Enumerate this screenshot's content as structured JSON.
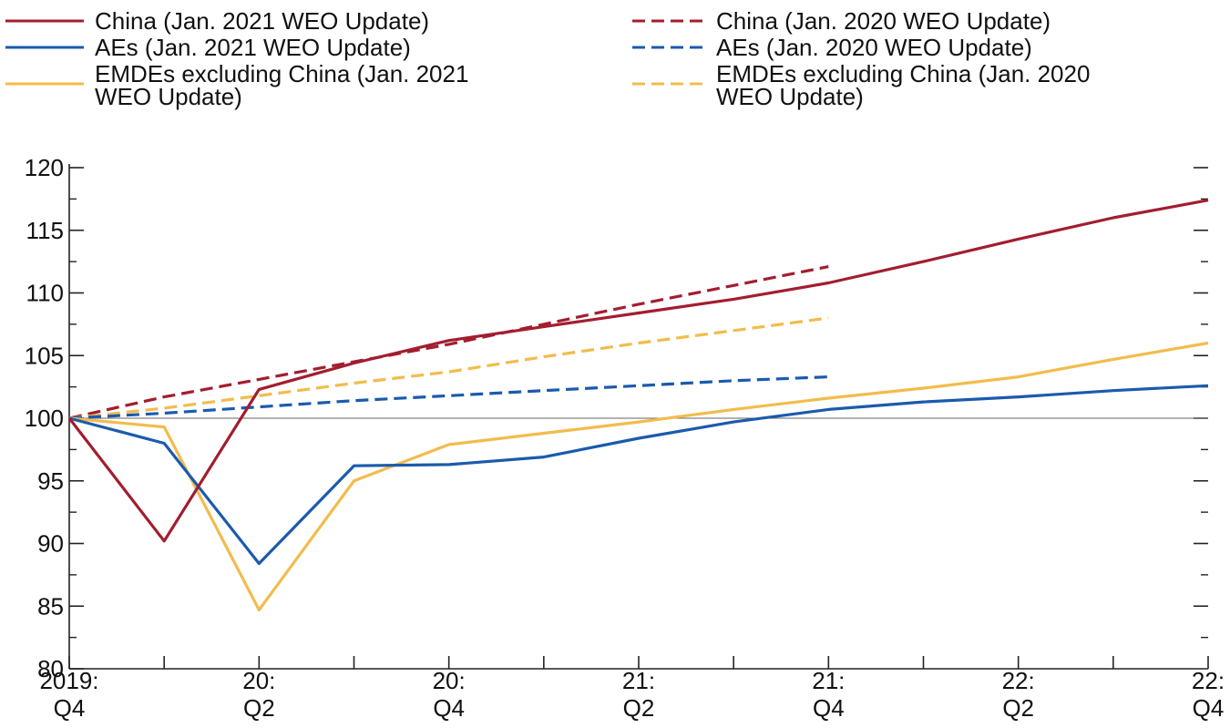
{
  "chart_data": {
    "type": "line",
    "title": "",
    "xlabel": "",
    "ylabel": "",
    "ylim": [
      80,
      120
    ],
    "y_major_ticks": [
      80,
      85,
      90,
      95,
      100,
      105,
      110,
      115,
      120
    ],
    "y_minor_ticks": [
      82.5,
      87.5,
      92.5,
      97.5,
      102.5,
      107.5,
      112.5,
      117.5
    ],
    "x_categories": [
      "2019:Q4",
      "2020:Q1",
      "2020:Q2",
      "2020:Q3",
      "2020:Q4",
      "2021:Q1",
      "2021:Q2",
      "2021:Q3",
      "2021:Q4",
      "2022:Q1",
      "2022:Q2",
      "2022:Q3",
      "2022:Q4"
    ],
    "x_tick_labels": [
      {
        "index": 0,
        "line1": "2019:",
        "line2": "Q4"
      },
      {
        "index": 2,
        "line1": "20:",
        "line2": "Q2"
      },
      {
        "index": 4,
        "line1": "20:",
        "line2": "Q4"
      },
      {
        "index": 6,
        "line1": "21:",
        "line2": "Q2"
      },
      {
        "index": 8,
        "line1": "21:",
        "line2": "Q4"
      },
      {
        "index": 10,
        "line1": "22:",
        "line2": "Q2"
      },
      {
        "index": 12,
        "line1": "22:",
        "line2": "Q4"
      }
    ],
    "reference_line": 100,
    "grid": false,
    "legend_position": "top",
    "series": [
      {
        "name": "China (Jan. 2021 WEO Update)",
        "color": "#a31d2f",
        "dash": "solid",
        "values": [
          100,
          90.2,
          102.3,
          104.4,
          106.2,
          107.3,
          108.4,
          109.5,
          110.8,
          112.5,
          114.3,
          116.0,
          117.4
        ]
      },
      {
        "name": "China (Jan. 2020 WEO Update)",
        "color": "#a31d2f",
        "dash": "dashed",
        "values": [
          100,
          101.7,
          103.1,
          104.5,
          105.9,
          107.5,
          109.1,
          110.6,
          112.1,
          null,
          null,
          null,
          null
        ]
      },
      {
        "name": "AEs (Jan. 2021 WEO Update)",
        "color": "#1b5aad",
        "dash": "solid",
        "values": [
          100,
          98.0,
          88.4,
          96.2,
          96.3,
          96.9,
          98.4,
          99.7,
          100.7,
          101.3,
          101.7,
          102.2,
          102.6
        ]
      },
      {
        "name": "AEs (Jan. 2020 WEO Update)",
        "color": "#1b5aad",
        "dash": "dashed",
        "values": [
          100,
          100.4,
          100.9,
          101.4,
          101.8,
          102.2,
          102.6,
          103.0,
          103.3,
          null,
          null,
          null,
          null
        ]
      },
      {
        "name": "EMDEs excluding China (Jan. 2021 WEO Update)",
        "color": "#f2bc4c",
        "dash": "solid",
        "values": [
          100,
          99.3,
          84.7,
          95.0,
          97.9,
          98.8,
          99.7,
          100.7,
          101.6,
          102.4,
          103.3,
          104.7,
          106.0
        ]
      },
      {
        "name": "EMDEs excluding China (Jan. 2020 WEO Update)",
        "color": "#f2bc4c",
        "dash": "dashed",
        "values": [
          100,
          100.8,
          101.8,
          102.8,
          103.7,
          104.9,
          106.0,
          107.0,
          108.0,
          null,
          null,
          null,
          null
        ]
      }
    ]
  }
}
